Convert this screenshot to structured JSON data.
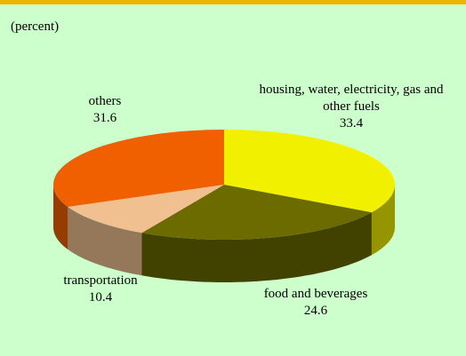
{
  "chart_data": {
    "type": "pie",
    "subtitle": "(percent)",
    "categories": [
      "housing, water, electricity, gas and other fuels",
      "food and beverages",
      "transportation",
      "others"
    ],
    "values": [
      33.4,
      24.6,
      10.4,
      31.6
    ],
    "colors": [
      "#f0f000",
      "#6b6b00",
      "#f0c090",
      "#f06000"
    ]
  }
}
